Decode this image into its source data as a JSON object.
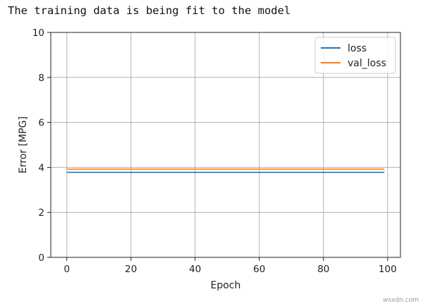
{
  "console": {
    "output_line": "The training data is being fit to the model"
  },
  "watermark": "wsxdn.com",
  "chart_data": {
    "type": "line",
    "title": "",
    "xlabel": "Epoch",
    "ylabel": "Error [MPG]",
    "xlim": [
      -5,
      104
    ],
    "ylim": [
      0,
      10
    ],
    "xticks": [
      0,
      20,
      40,
      60,
      80,
      100
    ],
    "yticks": [
      0,
      2,
      4,
      6,
      8,
      10
    ],
    "grid": true,
    "legend_position": "top-right",
    "series": [
      {
        "name": "loss",
        "color": "#1f77b4",
        "x": [
          0,
          99
        ],
        "values": [
          3.78,
          3.78
        ]
      },
      {
        "name": "val_loss",
        "color": "#ff7f0e",
        "x": [
          0,
          99
        ],
        "values": [
          3.92,
          3.92
        ]
      }
    ]
  }
}
